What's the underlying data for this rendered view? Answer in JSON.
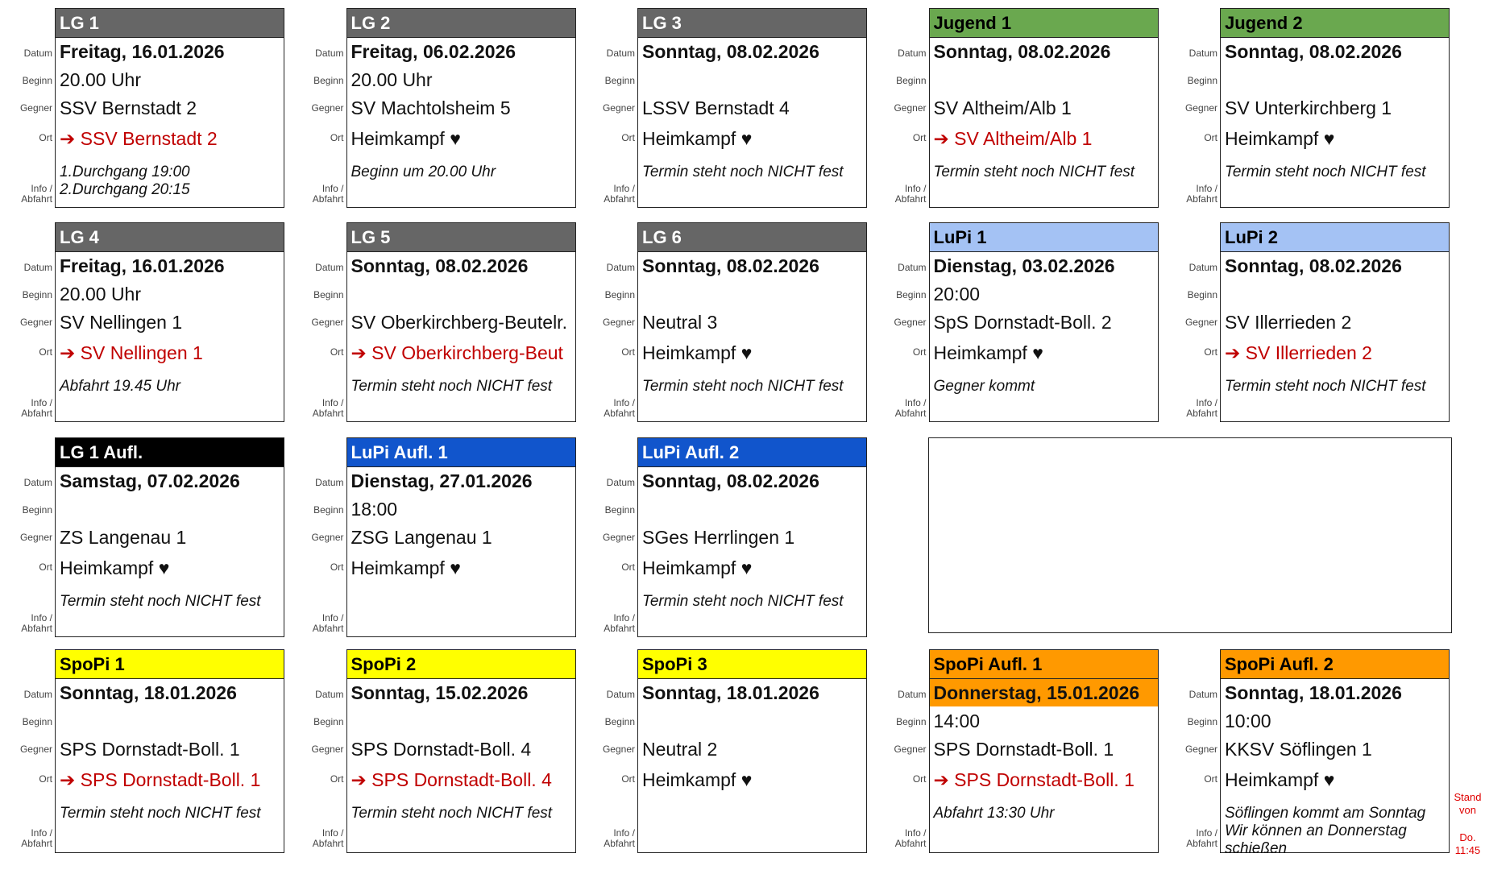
{
  "labels": {
    "datum": "Datum",
    "beginn": "Beginn",
    "gegner": "Gegner",
    "ort": "Ort",
    "info1": "Info /",
    "info2": "Abfahrt"
  },
  "rows": [
    [
      {
        "title": "LG 1",
        "header_color": "#666666",
        "header_text_color": "#ffffff",
        "datum": "Freitag, 16.01.2026",
        "beginn": "20.00 Uhr",
        "gegner": "SSV Bernstadt 2",
        "ort": "➔ SSV Bernstadt 2",
        "away": true,
        "info": [
          "1.Durchgang 19:00",
          "2.Durchgang 20:15"
        ]
      },
      {
        "title": "LG 2",
        "header_color": "#666666",
        "header_text_color": "#ffffff",
        "datum": "Freitag, 06.02.2026",
        "beginn": "20.00 Uhr",
        "gegner": "SV Machtolsheim 5",
        "ort": "Heimkampf ♥",
        "info": [
          "Beginn um 20.00 Uhr"
        ]
      },
      {
        "title": "LG 3",
        "header_color": "#666666",
        "header_text_color": "#ffffff",
        "datum": "Sonntag, 08.02.2026",
        "gegner": "LSSV Bernstadt 4",
        "ort": "Heimkampf ♥",
        "info": [
          "Termin steht noch NICHT fest"
        ]
      },
      {
        "title": "Jugend 1",
        "header_color": "#6aa84f",
        "header_text_color": "#000000",
        "datum": "Sonntag, 08.02.2026",
        "gegner": "SV Altheim/Alb 1",
        "ort": "➔ SV Altheim/Alb 1",
        "away": true,
        "info": [
          "Termin steht noch NICHT fest"
        ]
      },
      {
        "title": "Jugend 2",
        "header_color": "#6aa84f",
        "header_text_color": "#000000",
        "datum": "Sonntag, 08.02.2026",
        "gegner": "SV Unterkirchberg 1",
        "ort": "Heimkampf ♥",
        "info": [
          "Termin steht noch NICHT fest"
        ]
      }
    ],
    [
      {
        "title": "LG 4",
        "header_color": "#666666",
        "header_text_color": "#ffffff",
        "datum": "Freitag, 16.01.2026",
        "beginn": "20.00 Uhr",
        "gegner": "SV Nellingen 1",
        "ort": "➔ SV Nellingen 1",
        "away": true,
        "info": [
          "Abfahrt 19.45 Uhr"
        ]
      },
      {
        "title": "LG 5",
        "header_color": "#666666",
        "header_text_color": "#ffffff",
        "datum": "Sonntag, 08.02.2026",
        "gegner": "SV Oberkirchberg-Beutelr.",
        "ort": "➔ SV Oberkirchberg-Beut",
        "away": true,
        "info": [
          "Termin steht noch NICHT fest"
        ]
      },
      {
        "title": "LG 6",
        "header_color": "#666666",
        "header_text_color": "#ffffff",
        "datum": "Sonntag, 08.02.2026",
        "gegner": "Neutral 3",
        "ort": "Heimkampf ♥",
        "info": [
          "Termin steht noch NICHT fest"
        ]
      },
      {
        "title": "LuPi 1",
        "header_color": "#a4c2f4",
        "header_text_color": "#000000",
        "datum": "Dienstag, 03.02.2026",
        "beginn": "20:00",
        "gegner": "SpS Dornstadt-Boll. 2",
        "ort": "Heimkampf ♥",
        "info": [
          "Gegner kommt"
        ]
      },
      {
        "title": "LuPi 2",
        "header_color": "#a4c2f4",
        "header_text_color": "#000000",
        "datum": "Sonntag, 08.02.2026",
        "gegner": "SV Illerrieden 2",
        "ort": "➔ SV Illerrieden 2",
        "away": true,
        "info": [
          "Termin steht noch NICHT fest"
        ]
      }
    ],
    [
      {
        "title": "LG 1 Aufl.",
        "header_color": "#000000",
        "header_text_color": "#ffffff",
        "datum": "Samstag, 07.02.2026",
        "gegner": "ZS Langenau 1",
        "ort": "Heimkampf ♥",
        "info": [
          "Termin steht noch NICHT fest"
        ]
      },
      {
        "title": "LuPi Aufl. 1",
        "header_color": "#1155cc",
        "header_text_color": "#ffffff",
        "datum": "Dienstag, 27.01.2026",
        "beginn": "18:00",
        "gegner": "ZSG Langenau 1",
        "ort": "Heimkampf ♥"
      },
      {
        "title": "LuPi Aufl. 2",
        "header_color": "#1155cc",
        "header_text_color": "#ffffff",
        "datum": "Sonntag, 08.02.2026",
        "gegner": "SGes Herrlingen 1",
        "ort": "Heimkampf ♥",
        "info": [
          "Termin steht noch NICHT fest"
        ]
      }
    ],
    [
      {
        "title": "SpoPi 1",
        "header_color": "#ffff00",
        "header_text_color": "#000000",
        "datum": "Sonntag, 18.01.2026",
        "gegner": "SPS Dornstadt-Boll. 1",
        "ort": "➔ SPS Dornstadt-Boll. 1",
        "away": true,
        "info": [
          "Termin steht noch NICHT fest"
        ]
      },
      {
        "title": "SpoPi 2",
        "header_color": "#ffff00",
        "header_text_color": "#000000",
        "datum": "Sonntag, 15.02.2026",
        "gegner": "SPS Dornstadt-Boll. 4",
        "ort": "➔ SPS Dornstadt-Boll. 4",
        "away": true,
        "info": [
          "Termin steht noch NICHT fest"
        ]
      },
      {
        "title": "SpoPi 3",
        "header_color": "#ffff00",
        "header_text_color": "#000000",
        "datum": "Sonntag, 18.01.2026",
        "gegner": "Neutral 2",
        "ort": "Heimkampf ♥"
      },
      {
        "title": "SpoPi Aufl. 1",
        "header_color": "#ff9900",
        "header_text_color": "#000000",
        "date_color": "#ff9900",
        "datum": "Donnerstag, 15.01.2026",
        "beginn": "14:00",
        "gegner": "SPS Dornstadt-Boll. 1",
        "ort": "➔ SPS Dornstadt-Boll. 1",
        "away": true,
        "info": [
          "Abfahrt 13:30 Uhr"
        ]
      },
      {
        "title": "SpoPi Aufl. 2",
        "header_color": "#ff9900",
        "header_text_color": "#000000",
        "datum": "Sonntag, 18.01.2026",
        "beginn": "10:00",
        "gegner": "KKSV Söflingen 1",
        "ort": "Heimkampf ♥",
        "info": [
          "Söflingen kommt am Sonntag",
          "Wir können an Donnerstag",
          "schießen"
        ]
      }
    ]
  ],
  "stand": [
    "Stand",
    "von",
    "Do.",
    "11:45"
  ]
}
